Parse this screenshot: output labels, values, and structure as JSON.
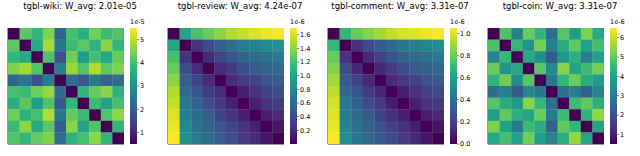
{
  "chart_data": [
    {
      "type": "heatmap",
      "title": "tgbl-wiki: W_avg: 2.01e-05",
      "tick_labels": false,
      "colorbar": {
        "lim": [
          0.5,
          5.5
        ],
        "ticks": [
          1,
          2,
          3,
          4,
          5
        ],
        "offset_label": "1e-5"
      },
      "cells": [
        [
          0.5,
          4.2,
          3.8,
          4.5,
          2.1,
          4.0,
          3.6,
          4.4,
          3.9,
          4.1
        ],
        [
          4.2,
          0.5,
          3.5,
          4.8,
          2.4,
          3.9,
          4.2,
          3.7,
          4.6,
          3.8
        ],
        [
          3.8,
          3.5,
          0.5,
          4.1,
          1.8,
          4.4,
          3.3,
          4.0,
          3.5,
          4.3
        ],
        [
          4.5,
          4.8,
          4.1,
          0.5,
          2.6,
          4.7,
          4.1,
          4.9,
          4.2,
          4.5
        ],
        [
          2.1,
          2.4,
          1.8,
          2.6,
          0.5,
          2.2,
          1.9,
          2.5,
          2.0,
          2.3
        ],
        [
          4.0,
          3.9,
          4.4,
          4.7,
          2.2,
          0.5,
          3.8,
          4.3,
          4.6,
          3.7
        ],
        [
          3.6,
          4.2,
          3.3,
          4.1,
          1.9,
          3.8,
          0.5,
          3.9,
          3.4,
          4.0
        ],
        [
          4.4,
          3.7,
          4.0,
          4.9,
          2.5,
          4.3,
          3.9,
          0.5,
          4.1,
          4.6
        ],
        [
          3.9,
          4.6,
          3.5,
          4.2,
          2.0,
          4.6,
          3.4,
          4.1,
          0.5,
          3.8
        ],
        [
          4.1,
          3.8,
          4.3,
          4.5,
          2.3,
          3.7,
          4.0,
          4.6,
          3.8,
          0.5
        ]
      ]
    },
    {
      "type": "heatmap",
      "title": "tgbl-review: W_avg: 4.24e-07",
      "tick_labels": false,
      "colorbar": {
        "lim": [
          0,
          1.7
        ],
        "ticks": [
          0.2,
          0.4,
          0.6,
          0.8,
          {
            "value": 1,
            "label": "1.0"
          },
          1.2,
          1.4,
          1.6
        ],
        "offset_label": "1e-6"
      },
      "cells": [
        [
          0,
          1.0,
          1.2,
          1.3,
          1.4,
          1.5,
          1.55,
          1.6,
          1.65,
          1.7
        ],
        [
          1.0,
          0,
          0.25,
          0.4,
          0.5,
          0.6,
          0.7,
          0.75,
          0.8,
          0.85
        ],
        [
          1.2,
          0.25,
          0,
          0.2,
          0.35,
          0.45,
          0.55,
          0.6,
          0.65,
          0.7
        ],
        [
          1.3,
          0.4,
          0.2,
          0,
          0.2,
          0.3,
          0.4,
          0.5,
          0.55,
          0.6
        ],
        [
          1.4,
          0.5,
          0.35,
          0.2,
          0,
          0.2,
          0.3,
          0.35,
          0.45,
          0.5
        ],
        [
          1.5,
          0.6,
          0.45,
          0.3,
          0.2,
          0,
          0.15,
          0.25,
          0.35,
          0.4
        ],
        [
          1.55,
          0.7,
          0.55,
          0.4,
          0.3,
          0.15,
          0,
          0.15,
          0.25,
          0.3
        ],
        [
          1.6,
          0.75,
          0.6,
          0.5,
          0.35,
          0.25,
          0.15,
          0,
          0.15,
          0.2
        ],
        [
          1.65,
          0.8,
          0.65,
          0.55,
          0.45,
          0.35,
          0.25,
          0.15,
          0,
          0.1
        ],
        [
          1.7,
          0.85,
          0.7,
          0.6,
          0.5,
          0.4,
          0.3,
          0.2,
          0.1,
          0
        ]
      ]
    },
    {
      "type": "heatmap",
      "title": "tgbl-comment: W_avg: 3.31e-07",
      "tick_labels": false,
      "colorbar": {
        "lim": [
          0,
          1.05
        ],
        "ticks": [
          {
            "value": 0,
            "label": "0.0"
          },
          0.2,
          0.4,
          0.6,
          0.8,
          {
            "value": 1,
            "label": "1.0"
          }
        ],
        "offset_label": "1e-6"
      },
      "cells": [
        [
          0,
          0.7,
          0.8,
          0.85,
          0.9,
          0.95,
          0.98,
          1.0,
          1.02,
          1.05
        ],
        [
          0.7,
          0,
          0.15,
          0.24,
          0.3,
          0.36,
          0.42,
          0.45,
          0.48,
          0.51
        ],
        [
          0.8,
          0.15,
          0,
          0.12,
          0.21,
          0.27,
          0.33,
          0.36,
          0.39,
          0.42
        ],
        [
          0.85,
          0.24,
          0.12,
          0,
          0.12,
          0.18,
          0.24,
          0.3,
          0.33,
          0.36
        ],
        [
          0.9,
          0.3,
          0.21,
          0.12,
          0,
          0.12,
          0.18,
          0.21,
          0.27,
          0.3
        ],
        [
          0.95,
          0.36,
          0.27,
          0.18,
          0.12,
          0,
          0.09,
          0.15,
          0.21,
          0.24
        ],
        [
          0.98,
          0.42,
          0.33,
          0.24,
          0.18,
          0.09,
          0,
          0.09,
          0.15,
          0.18
        ],
        [
          1.0,
          0.45,
          0.36,
          0.3,
          0.21,
          0.15,
          0.09,
          0,
          0.09,
          0.12
        ],
        [
          1.02,
          0.48,
          0.39,
          0.33,
          0.27,
          0.21,
          0.15,
          0.09,
          0,
          0.06
        ],
        [
          1.05,
          0.51,
          0.42,
          0.36,
          0.3,
          0.24,
          0.18,
          0.12,
          0.06,
          0
        ]
      ]
    },
    {
      "type": "heatmap",
      "title": "tgbl-coin: W_avg: 3.31e-07",
      "tick_labels": false,
      "colorbar": {
        "lim": [
          0.5,
          6.5
        ],
        "ticks": [
          1,
          2,
          3,
          4,
          5,
          6
        ],
        "offset_label": "1e-6"
      },
      "cells": [
        [
          0.5,
          4.8,
          3.2,
          5.1,
          4.4,
          2.6,
          4.9,
          3.8,
          5.3,
          4.1
        ],
        [
          4.8,
          0.5,
          4.5,
          3.6,
          5.2,
          3.1,
          4.2,
          5.0,
          3.9,
          4.7
        ],
        [
          3.2,
          4.5,
          0.5,
          4.1,
          3.4,
          2.2,
          3.7,
          4.3,
          3.0,
          3.9
        ],
        [
          5.1,
          3.6,
          4.1,
          0.5,
          4.9,
          3.3,
          5.4,
          4.0,
          4.6,
          5.2
        ],
        [
          4.4,
          5.2,
          3.4,
          4.9,
          0.5,
          2.9,
          4.5,
          5.1,
          4.2,
          3.8
        ],
        [
          2.6,
          3.1,
          2.2,
          3.3,
          2.9,
          0.5,
          2.7,
          3.0,
          2.4,
          3.2
        ],
        [
          4.9,
          4.2,
          3.7,
          5.4,
          4.5,
          2.7,
          0.5,
          4.6,
          5.0,
          4.3
        ],
        [
          3.8,
          5.0,
          4.3,
          4.0,
          5.1,
          3.0,
          4.6,
          0.5,
          4.4,
          5.5
        ],
        [
          5.3,
          3.9,
          3.0,
          4.6,
          4.2,
          2.4,
          5.0,
          4.4,
          0.5,
          4.0
        ],
        [
          4.1,
          4.7,
          3.9,
          5.2,
          3.8,
          3.2,
          4.3,
          5.5,
          4.0,
          0.5
        ]
      ]
    }
  ]
}
